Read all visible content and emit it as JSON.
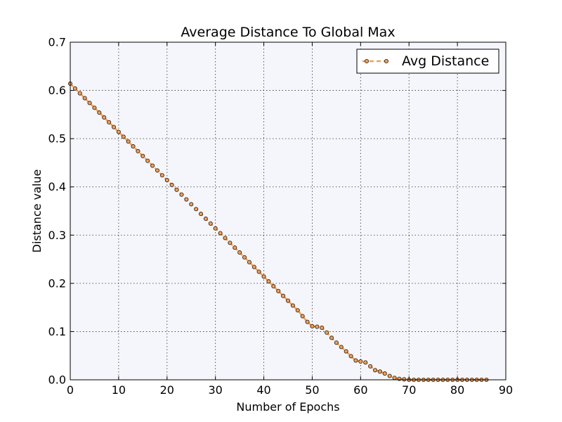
{
  "chart_data": {
    "type": "line",
    "title": "Average Distance To Global Max",
    "xlabel": "Number of Epochs",
    "ylabel": "Distance value",
    "xlim": [
      0,
      90
    ],
    "ylim": [
      0.0,
      0.7
    ],
    "xticks": [
      "0",
      "10",
      "20",
      "30",
      "40",
      "50",
      "60",
      "70",
      "80",
      "90"
    ],
    "yticks": [
      "0.0",
      "0.1",
      "0.2",
      "0.3",
      "0.4",
      "0.5",
      "0.6",
      "0.7"
    ],
    "grid": true,
    "legend_position": "upper-right",
    "plot_background": "#f5f6fb",
    "series": [
      {
        "name": "Avg Distance",
        "line_color": "#f0a05a",
        "marker_color": "#f0a05a",
        "marker_edge": "#3a2a1a",
        "line_style": "dashed",
        "x": [
          0,
          1,
          2,
          3,
          4,
          5,
          6,
          7,
          8,
          9,
          10,
          11,
          12,
          13,
          14,
          15,
          16,
          17,
          18,
          19,
          20,
          21,
          22,
          23,
          24,
          25,
          26,
          27,
          28,
          29,
          30,
          31,
          32,
          33,
          34,
          35,
          36,
          37,
          38,
          39,
          40,
          41,
          42,
          43,
          44,
          45,
          46,
          47,
          48,
          49,
          50,
          51,
          52,
          53,
          54,
          55,
          56,
          57,
          58,
          59,
          60,
          61,
          62,
          63,
          64,
          65,
          66,
          67,
          68,
          69,
          70,
          71,
          72,
          73,
          74,
          75,
          76,
          77,
          78,
          79,
          80,
          81,
          82,
          83,
          84,
          85,
          86
        ],
        "values": [
          0.614,
          0.604,
          0.594,
          0.584,
          0.574,
          0.564,
          0.554,
          0.544,
          0.534,
          0.524,
          0.514,
          0.504,
          0.494,
          0.484,
          0.474,
          0.464,
          0.454,
          0.444,
          0.434,
          0.424,
          0.414,
          0.404,
          0.394,
          0.384,
          0.374,
          0.364,
          0.354,
          0.344,
          0.334,
          0.324,
          0.314,
          0.304,
          0.294,
          0.284,
          0.274,
          0.264,
          0.254,
          0.244,
          0.234,
          0.224,
          0.214,
          0.204,
          0.194,
          0.184,
          0.174,
          0.164,
          0.154,
          0.144,
          0.132,
          0.12,
          0.111,
          0.11,
          0.108,
          0.098,
          0.087,
          0.077,
          0.068,
          0.059,
          0.049,
          0.04,
          0.038,
          0.036,
          0.028,
          0.02,
          0.017,
          0.013,
          0.008,
          0.004,
          0.002,
          0.001,
          0.0,
          0.0,
          0.0,
          0.0,
          0.0,
          0.0,
          0.0,
          0.0,
          0.0,
          0.0,
          0.0,
          0.0,
          0.0,
          0.0,
          0.0,
          0.0,
          0.0
        ]
      }
    ]
  }
}
